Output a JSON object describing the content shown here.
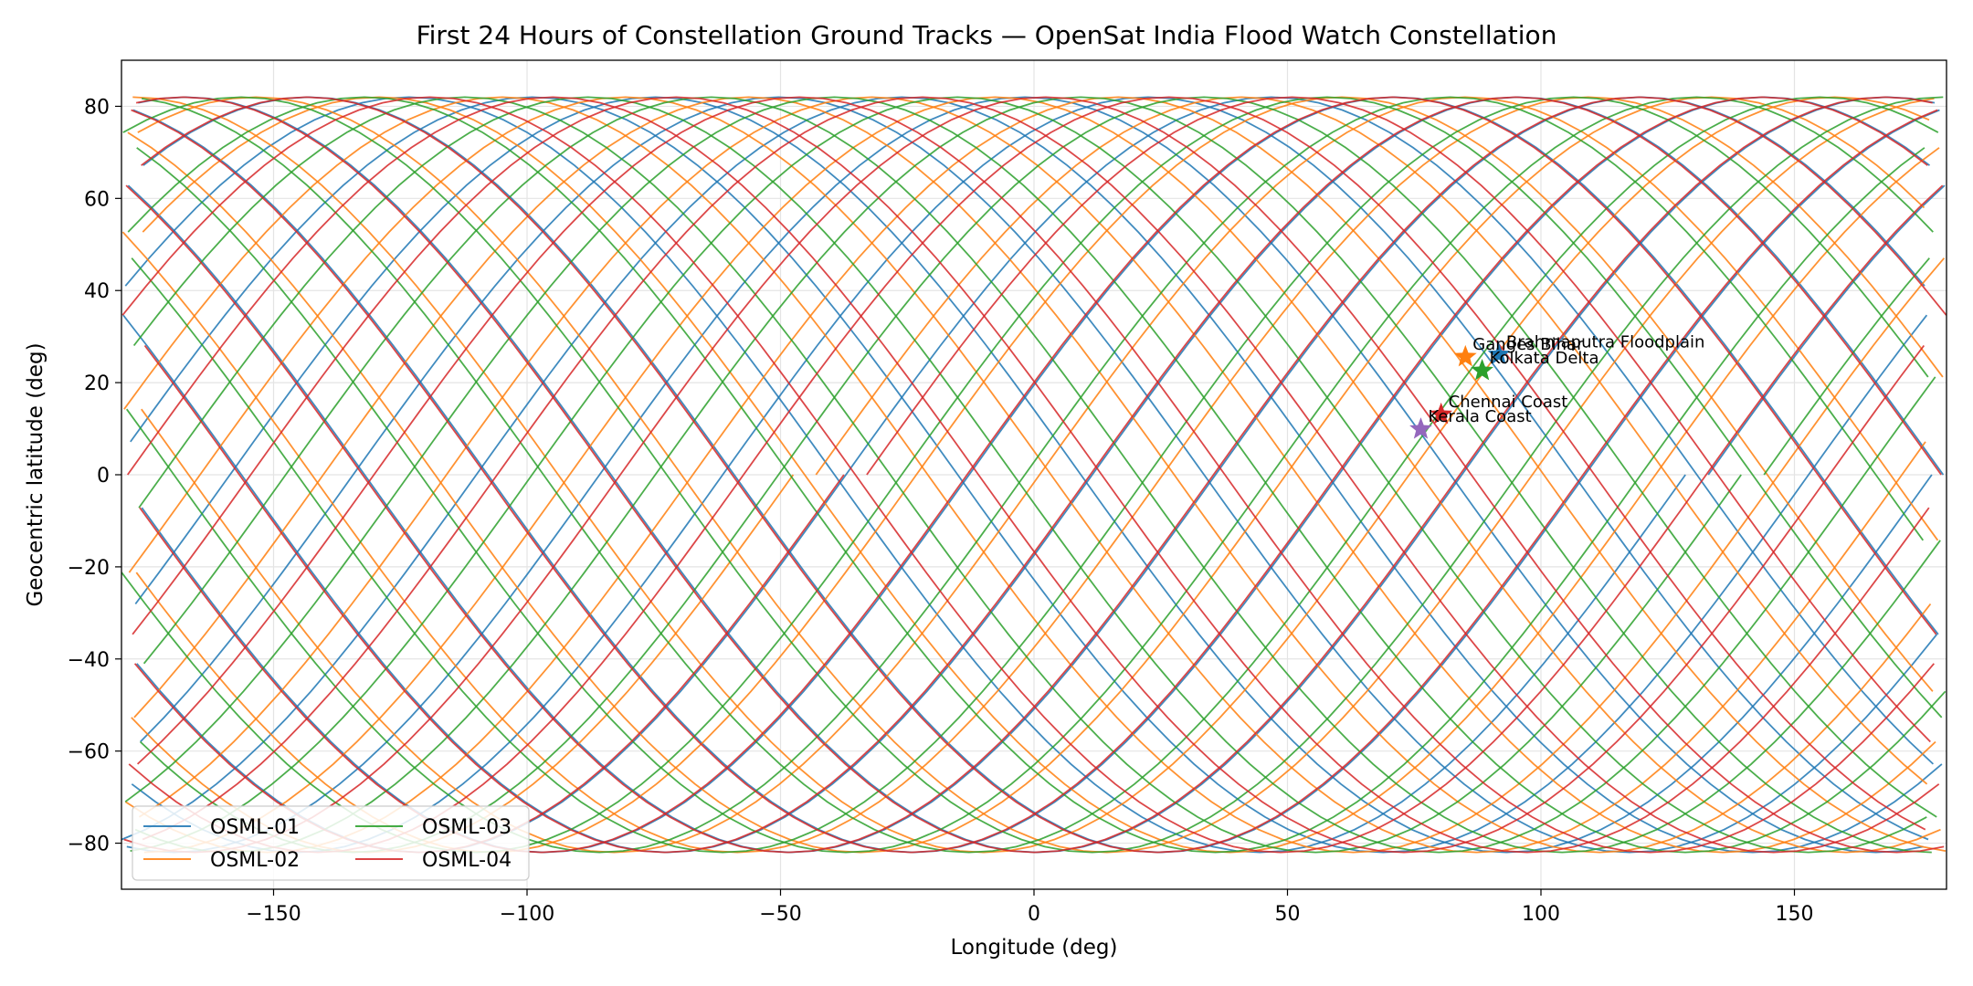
{
  "chart_data": {
    "type": "line",
    "title": "First 24 Hours of Constellation Ground Tracks — OpenSat India Flood Watch Constellation",
    "xlabel": "Longitude (deg)",
    "ylabel": "Geocentric latitude (deg)",
    "xlim": [
      -180,
      180
    ],
    "ylim": [
      -90,
      90
    ],
    "xticks": [
      -150,
      -100,
      -50,
      0,
      50,
      100,
      150
    ],
    "yticks": [
      -80,
      -60,
      -40,
      -20,
      0,
      20,
      40,
      60,
      80
    ],
    "xtick_labels": [
      "−150",
      "−100",
      "−50",
      "0",
      "50",
      "100",
      "150"
    ],
    "ytick_labels": [
      "−80",
      "−60",
      "−40",
      "−20",
      "0",
      "20",
      "40",
      "60",
      "80"
    ],
    "grid": true,
    "legend_position": "lower-left",
    "series": [
      {
        "name": "OSML-01",
        "color": "#1f77b4",
        "inclination_deg": 82,
        "start_lon": 133,
        "passes": 15,
        "lon_shift_per_orbit_deg": -24.3,
        "end_lon": -180
      },
      {
        "name": "OSML-02",
        "color": "#ff7f0e",
        "inclination_deg": 82,
        "start_lon": -43,
        "passes": 15,
        "lon_shift_per_orbit_deg": -24.3,
        "end_lon": 180
      },
      {
        "name": "OSML-03",
        "color": "#2ca02c",
        "inclination_deg": 82,
        "start_lon": 144,
        "passes": 15,
        "lon_shift_per_orbit_deg": -24.3,
        "end_lon": -180
      },
      {
        "name": "OSML-04",
        "color": "#d62728",
        "inclination_deg": 82,
        "start_lon": -33,
        "passes": 15,
        "lon_shift_per_orbit_deg": -24.3,
        "end_lon": 180
      }
    ],
    "targets": [
      {
        "name": "Brahmaputra Floodplain",
        "lon": 91.7,
        "lat": 26.1,
        "color": "#1f77b4"
      },
      {
        "name": "Ganges Bihar",
        "lon": 85.1,
        "lat": 25.6,
        "color": "#ff7f0e"
      },
      {
        "name": "Kolkata Delta",
        "lon": 88.4,
        "lat": 22.6,
        "color": "#2ca02c"
      },
      {
        "name": "Chennai Coast",
        "lon": 80.3,
        "lat": 13.1,
        "color": "#d62728"
      },
      {
        "name": "Kerala Coast",
        "lon": 76.3,
        "lat": 9.9,
        "color": "#9467bd"
      }
    ]
  }
}
